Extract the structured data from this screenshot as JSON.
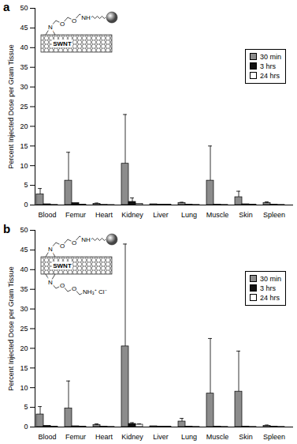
{
  "chart_data": [
    {
      "type": "bar",
      "title": "a",
      "y_label": "Percent Injected Dose per Gram Tissue",
      "categories": [
        "Blood",
        "Femur",
        "Heart",
        "Kidney",
        "Liver",
        "Lung",
        "Muscle",
        "Skin",
        "Spleen"
      ],
      "series": [
        {
          "name": "30 min",
          "color": "#8c8c8c",
          "values": [
            2.7,
            6.2,
            0.3,
            10.5,
            0.2,
            0.5,
            6.2,
            2.0,
            0.5
          ],
          "errors": [
            1.5,
            7.2,
            0.2,
            12.5,
            null,
            0.2,
            8.8,
            1.5,
            0.3
          ]
        },
        {
          "name": "3 hrs",
          "color": "#111111",
          "values": [
            0.2,
            0.5,
            0.05,
            0.8,
            0.1,
            0.1,
            0.1,
            0.2,
            0.1
          ],
          "errors": [
            null,
            null,
            null,
            1.0,
            null,
            null,
            null,
            null,
            null
          ]
        },
        {
          "name": "24 hrs",
          "color": "#ffffff",
          "values": [
            0.05,
            0.1,
            0.02,
            0.3,
            0.1,
            0.05,
            0.05,
            0.1,
            0.05
          ],
          "errors": [
            null,
            null,
            null,
            null,
            null,
            null,
            null,
            null,
            null
          ]
        }
      ],
      "ylim": [
        0,
        50
      ],
      "yticks": [
        0,
        5,
        10,
        15,
        20,
        25,
        30,
        35,
        40,
        45,
        50
      ],
      "legend": "upper right",
      "annotations": {
        "tube": "SWNT",
        "chains": [
          [
            "N",
            "O",
            "O",
            "NH"
          ]
        ]
      }
    },
    {
      "type": "bar",
      "title": "b",
      "y_label": "Percent Injected Dose per Gram Tissue",
      "categories": [
        "Blood",
        "Femur",
        "Heart",
        "Kidney",
        "Liver",
        "Lung",
        "Muscle",
        "Skin",
        "Spleen"
      ],
      "series": [
        {
          "name": "30 min",
          "color": "#8c8c8c",
          "values": [
            3.2,
            4.7,
            0.5,
            20.5,
            0.2,
            1.4,
            8.5,
            9.0,
            0.3
          ],
          "errors": [
            2.0,
            7.0,
            0.3,
            26.0,
            null,
            0.8,
            14.0,
            10.3,
            0.2
          ]
        },
        {
          "name": "3 hrs",
          "color": "#111111",
          "values": [
            0.3,
            0.2,
            0.1,
            0.8,
            0.1,
            0.1,
            0.1,
            0.1,
            0.1
          ],
          "errors": [
            null,
            null,
            null,
            0.3,
            null,
            null,
            null,
            null,
            null
          ]
        },
        {
          "name": "24 hrs",
          "color": "#ffffff",
          "values": [
            0.1,
            0.1,
            0.05,
            0.6,
            0.1,
            0.05,
            0.05,
            0.05,
            0.05
          ],
          "errors": [
            null,
            null,
            null,
            0.2,
            null,
            null,
            null,
            null,
            null
          ]
        }
      ],
      "ylim": [
        0,
        50
      ],
      "yticks": [
        0,
        5,
        10,
        15,
        20,
        25,
        30,
        35,
        40,
        45,
        50
      ],
      "legend": "upper right",
      "annotations": {
        "tube": "SWNT",
        "chains": [
          [
            "N",
            "O",
            "O",
            "NH"
          ],
          [
            "N",
            "O",
            "O",
            "NH₃⁺ Cl⁻"
          ]
        ]
      }
    }
  ]
}
